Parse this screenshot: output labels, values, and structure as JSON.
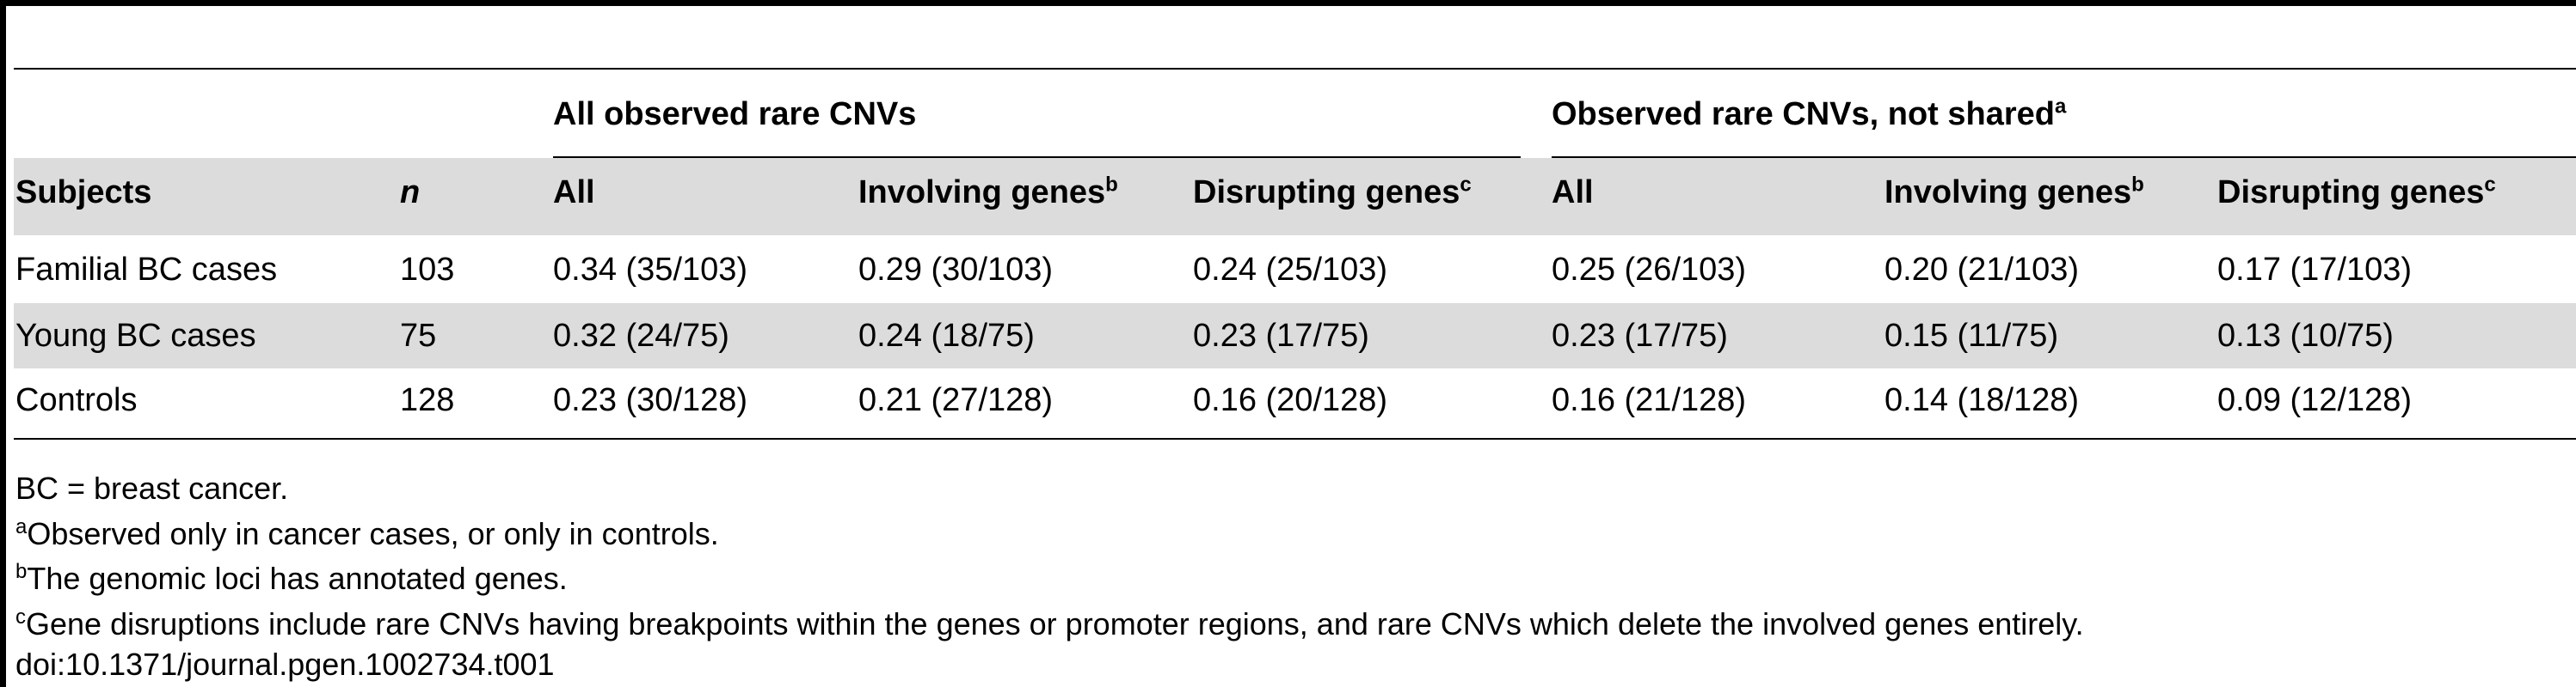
{
  "table": {
    "groups": {
      "all_observed": "All observed rare CNVs",
      "not_shared": "Observed rare CNVs, not shared",
      "not_shared_note": "a"
    },
    "headers": {
      "subjects": "Subjects",
      "n": "n",
      "all": "All",
      "involving": "Involving genes",
      "involving_note": "b",
      "disrupting": "Disrupting genes",
      "disrupting_note": "c"
    },
    "rows": [
      {
        "subject": "Familial BC cases",
        "n": "103",
        "v": [
          "0.34 (35/103)",
          "0.29 (30/103)",
          "0.24 (25/103)",
          "0.25 (26/103)",
          "0.20 (21/103)",
          "0.17 (17/103)"
        ]
      },
      {
        "subject": "Young BC cases",
        "n": "75",
        "v": [
          "0.32 (24/75)",
          "0.24 (18/75)",
          "0.23 (17/75)",
          "0.23 (17/75)",
          "0.15 (11/75)",
          "0.13 (10/75)"
        ]
      },
      {
        "subject": "Controls",
        "n": "128",
        "v": [
          "0.23 (30/128)",
          "0.21 (27/128)",
          "0.16 (20/128)",
          "0.16 (21/128)",
          "0.14 (18/128)",
          "0.09 (12/128)"
        ]
      }
    ]
  },
  "footnotes": {
    "abbrev": "BC = breast cancer.",
    "a_mark": "a",
    "a_text": "Observed only in cancer cases, or only in controls.",
    "b_mark": "b",
    "b_text": "The genomic loci has annotated genes.",
    "c_mark": "c",
    "c_text": "Gene disruptions include rare CNVs having breakpoints within the genes or promoter regions, and rare CNVs which delete the involved genes entirely.",
    "doi": "doi:10.1371/journal.pgen.1002734.t001"
  }
}
